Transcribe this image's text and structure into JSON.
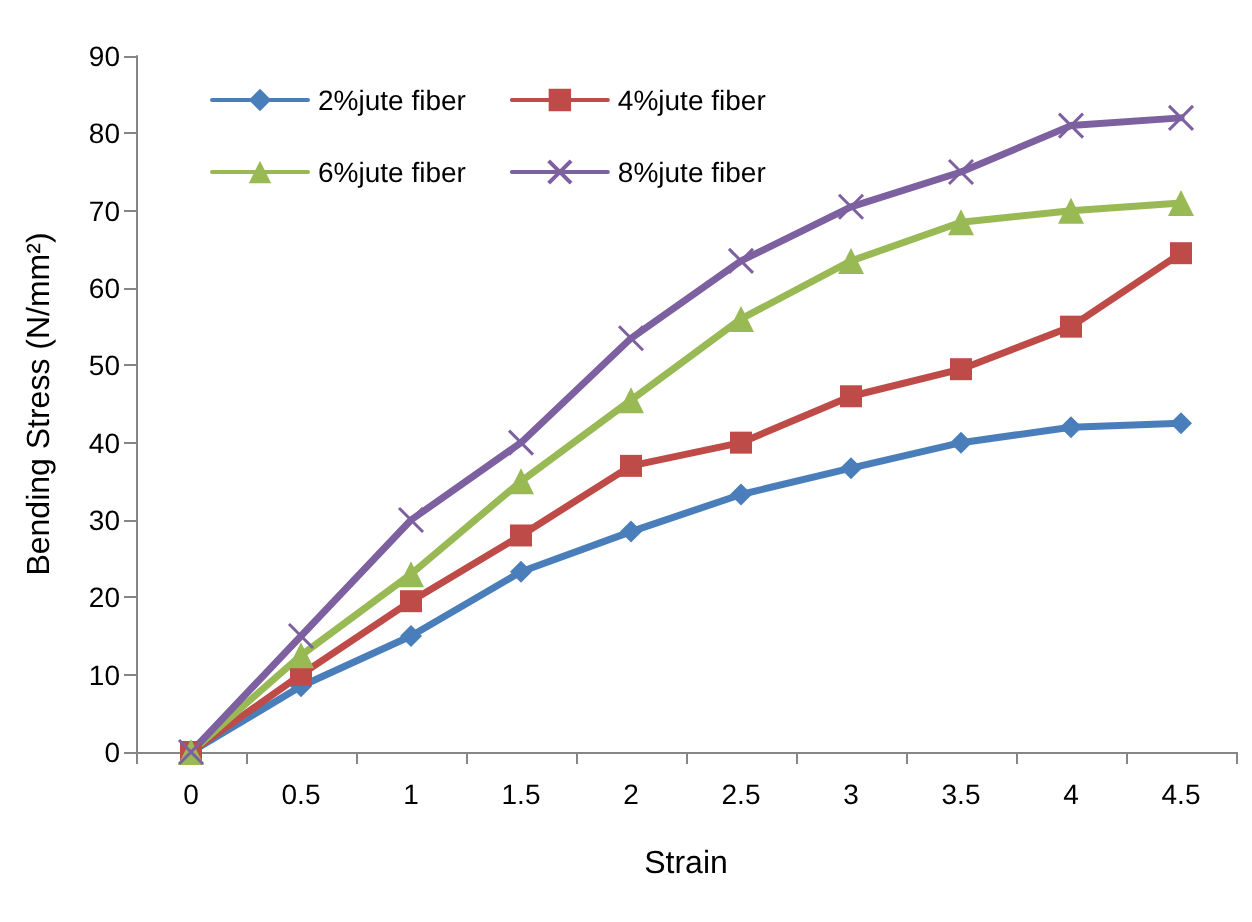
{
  "chart_data": {
    "type": "line",
    "xlabel": "Strain",
    "ylabel": "Bending Stress (N/mm²)",
    "categories": [
      "0",
      "0.5",
      "1",
      "1.5",
      "2",
      "2.5",
      "3",
      "3.5",
      "4",
      "4.5"
    ],
    "ylim": [
      0,
      90
    ],
    "yticks": [
      0,
      10,
      20,
      30,
      40,
      50,
      60,
      70,
      80,
      90
    ],
    "grid": false,
    "legend": "top left",
    "series": [
      {
        "name": "2%jute fiber",
        "color": "#4a7ebb",
        "marker": "diamond",
        "values": [
          0,
          8.5,
          15,
          23.3,
          28.5,
          33.3,
          36.7,
          40,
          42,
          42.5
        ]
      },
      {
        "name": "4%jute fiber",
        "color": "#be4b48",
        "marker": "square",
        "values": [
          0,
          10,
          19.5,
          28,
          37,
          40,
          46,
          49.5,
          55,
          64.5
        ]
      },
      {
        "name": "6%jute fiber",
        "color": "#98b954",
        "marker": "triangle",
        "values": [
          0,
          12.5,
          23,
          35,
          45.5,
          56,
          63.5,
          68.5,
          70,
          71
        ]
      },
      {
        "name": "8%jute fiber",
        "color": "#7d60a0",
        "marker": "cross",
        "values": [
          0,
          15,
          30,
          40,
          53.5,
          63.5,
          70.5,
          75,
          81,
          82
        ]
      }
    ]
  }
}
